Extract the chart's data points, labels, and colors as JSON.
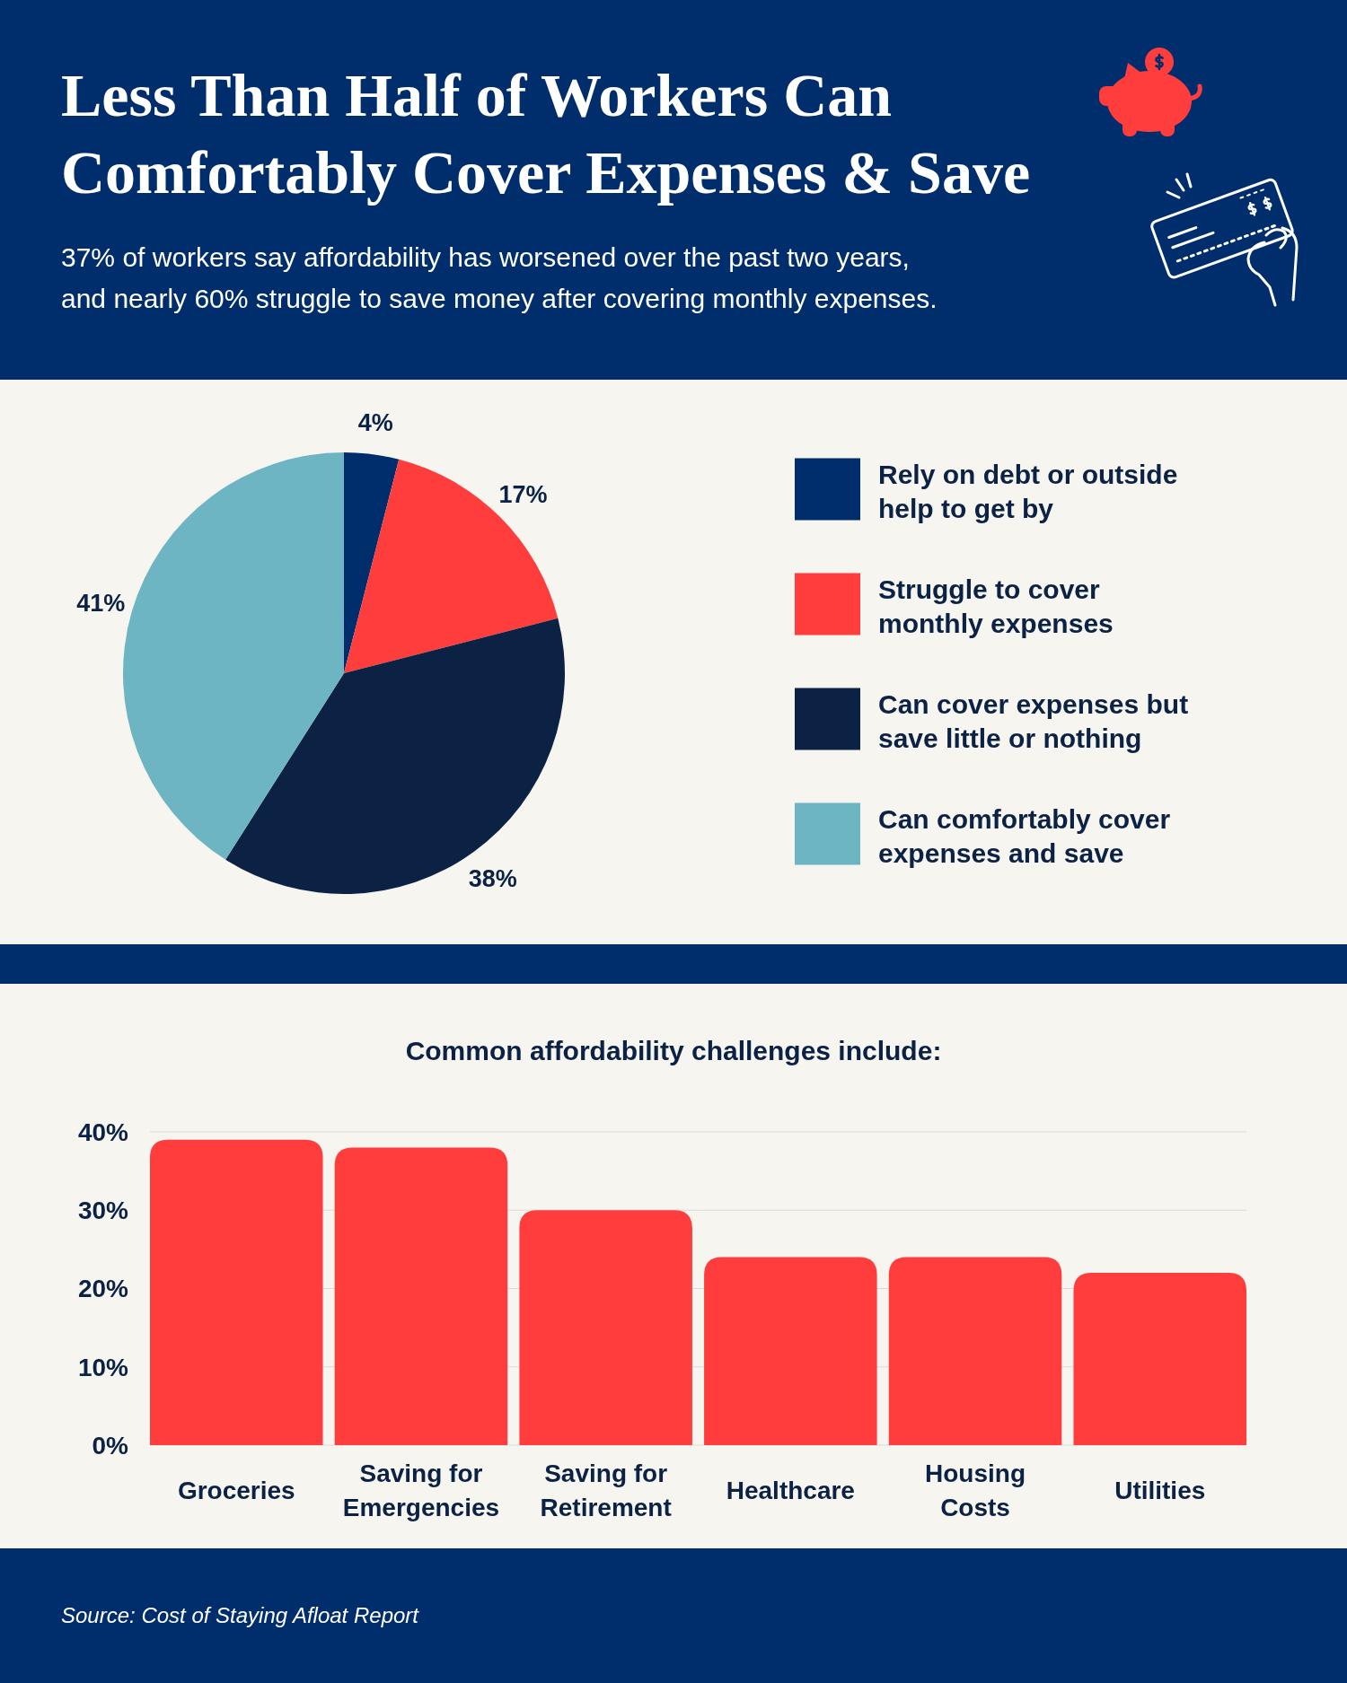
{
  "chart_data": [
    {
      "type": "pie",
      "title": "Less Than Half of Workers Can Comfortably Cover Expenses & Save",
      "subtitle": "37% of workers say affordability has worsened over the past two years, and nearly 60% struggle to save money after covering monthly expenses.",
      "categories": [
        "Rely on debt or outside help to get by",
        "Struggle to cover monthly expenses",
        "Can cover expenses but save little or nothing",
        "Can comfortably cover expenses and save"
      ],
      "values": [
        4,
        17,
        38,
        41
      ],
      "colors": [
        "#002d6b",
        "#ff3d3d",
        "#0b2245",
        "#6db5c3"
      ],
      "value_labels": [
        "4%",
        "17%",
        "38%",
        "41%"
      ],
      "legend": "right"
    },
    {
      "type": "bar",
      "title": "Common affordability challenges include:",
      "categories": [
        "Groceries",
        "Saving for Emergencies",
        "Saving for Retirement",
        "Healthcare",
        "Housing Costs",
        "Utilities"
      ],
      "values": [
        39,
        38,
        30,
        24,
        24,
        22
      ],
      "color": "#ff3d3d",
      "ylim": [
        0,
        40
      ],
      "yticks": [
        {
          "value": 0,
          "label": "0%"
        },
        {
          "value": 10,
          "label": "10%"
        },
        {
          "value": 20,
          "label": "20%"
        },
        {
          "value": 30,
          "label": "30%"
        },
        {
          "value": 40,
          "label": "40%"
        }
      ],
      "grid": "y",
      "annotations": [
        "Source: Cost of Staying Afloat Report"
      ]
    }
  ]
}
